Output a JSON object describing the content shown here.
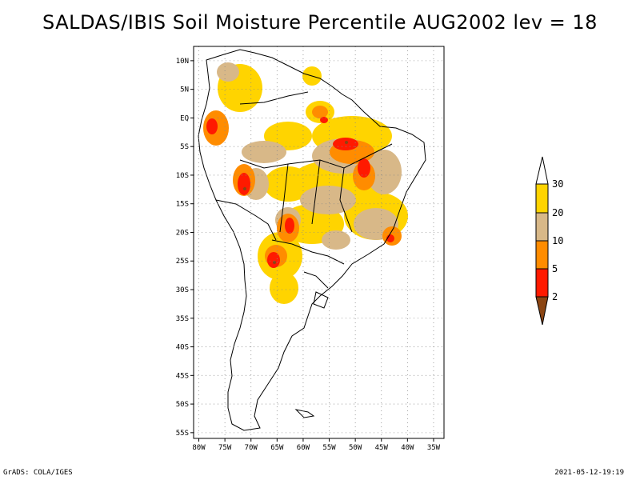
{
  "title": "SALDAS/IBIS Soil Moisture Percentile AUG2002 lev = 18",
  "footer": {
    "left": "GrADS: COLA/IGES",
    "right": "2021-05-12-19:19"
  },
  "axes": {
    "lon_labels": [
      "80W",
      "75W",
      "70W",
      "65W",
      "60W",
      "55W",
      "50W",
      "45W",
      "40W",
      "35W"
    ],
    "lon_values": [
      -80,
      -75,
      -70,
      -65,
      -60,
      -55,
      -50,
      -45,
      -40,
      -35
    ],
    "lat_labels": [
      "10N",
      "5N",
      "EQ",
      "5S",
      "10S",
      "15S",
      "20S",
      "25S",
      "30S",
      "35S",
      "40S",
      "45S",
      "50S",
      "55S"
    ],
    "lat_values": [
      10,
      5,
      0,
      -5,
      -10,
      -15,
      -20,
      -25,
      -30,
      -35,
      -40,
      -45,
      -50,
      -55
    ],
    "lon_range": [
      -81,
      -33
    ],
    "lat_range": [
      -56,
      12.5
    ]
  },
  "colorbar": {
    "labels": [
      "30",
      "20",
      "10",
      "5",
      "2"
    ],
    "levels": [
      30,
      20,
      10,
      5,
      2
    ],
    "colors": {
      "above30": "#ffffff",
      "20to30": "#ffd400",
      "10to20": "#d8b888",
      "5to10": "#ff8c00",
      "2to5": "#ff1a00",
      "below2": "#8b4513"
    }
  }
}
